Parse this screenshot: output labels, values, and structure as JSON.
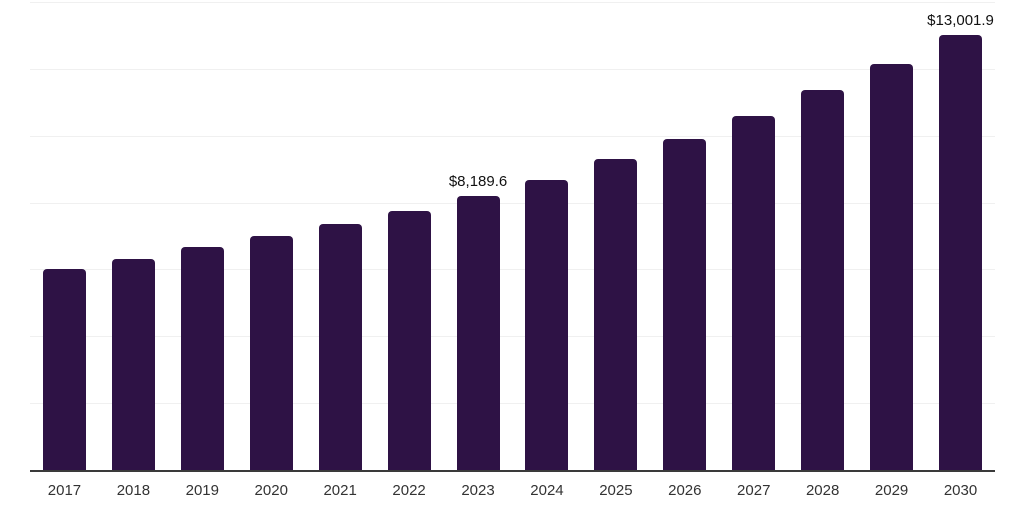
{
  "chart_data": {
    "type": "bar",
    "title": "",
    "xlabel": "",
    "ylabel": "",
    "categories": [
      "2017",
      "2018",
      "2019",
      "2020",
      "2021",
      "2022",
      "2023",
      "2024",
      "2025",
      "2026",
      "2027",
      "2028",
      "2029",
      "2030"
    ],
    "values": [
      6020,
      6320,
      6670,
      6990,
      7360,
      7750,
      8189.6,
      8690,
      9290,
      9910,
      10600,
      11360,
      12160,
      13001.9
    ],
    "bar_labels": [
      "",
      "",
      "",
      "",
      "",
      "",
      "$8,189.6",
      "",
      "",
      "",
      "",
      "",
      "",
      "$13,001.9"
    ],
    "ylim": [
      0,
      14000
    ],
    "gridline_step": 2000,
    "grid": true,
    "legend": false,
    "y_axis_labels_visible": false,
    "colors": {
      "bar": "#2e1245",
      "gridline": "#f0f0f0",
      "axis_line": "#3a3a3a",
      "value_label": "#111111",
      "tick_label": "#333333",
      "background": "#ffffff"
    }
  }
}
